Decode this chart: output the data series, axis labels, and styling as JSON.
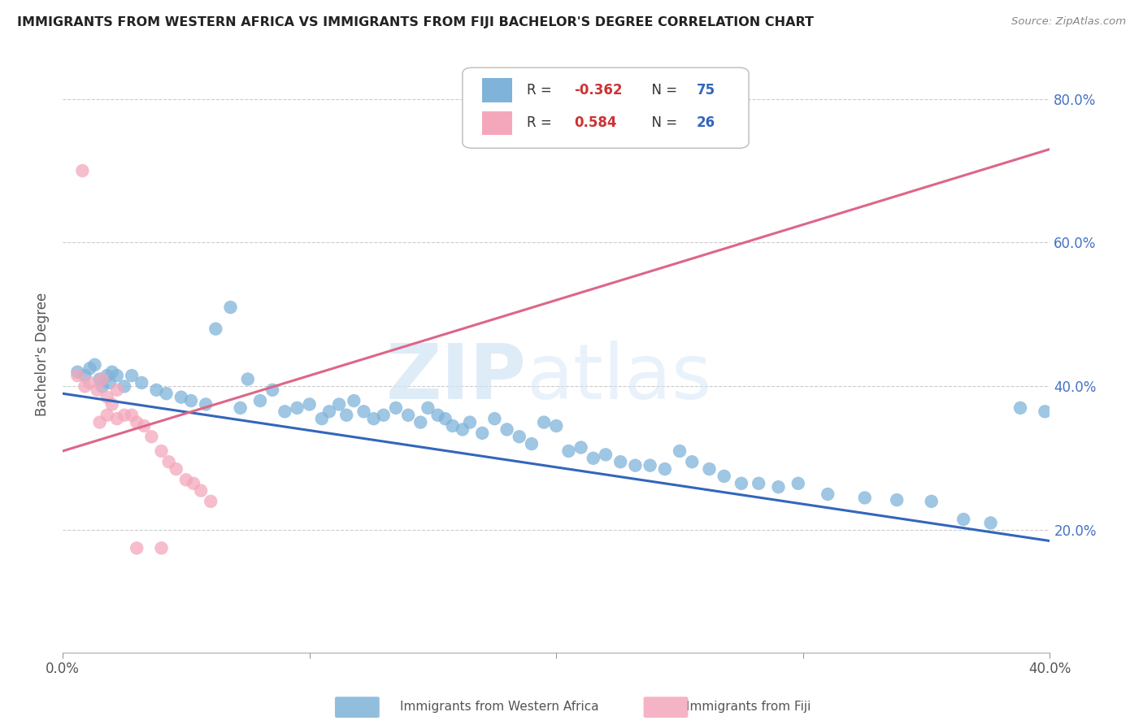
{
  "title": "IMMIGRANTS FROM WESTERN AFRICA VS IMMIGRANTS FROM FIJI BACHELOR'S DEGREE CORRELATION CHART",
  "source": "Source: ZipAtlas.com",
  "ylabel": "Bachelor's Degree",
  "xlim": [
    0.0,
    0.4
  ],
  "ylim": [
    0.03,
    0.86
  ],
  "yticks": [
    0.2,
    0.4,
    0.6,
    0.8
  ],
  "ytick_labels": [
    "20.0%",
    "40.0%",
    "60.0%",
    "80.0%"
  ],
  "xticks": [
    0.0,
    0.1,
    0.2,
    0.3,
    0.4
  ],
  "xtick_labels": [
    "0.0%",
    "",
    "",
    "",
    "40.0%"
  ],
  "blue_R": "-0.362",
  "blue_N": "75",
  "pink_R": "0.584",
  "pink_N": "26",
  "blue_color": "#7fb3d9",
  "pink_color": "#f4a7bb",
  "blue_line_color": "#3366bb",
  "pink_line_color": "#dd6688",
  "watermark_zip": "ZIP",
  "watermark_atlas": "atlas",
  "background_color": "#ffffff",
  "blue_points_x": [
    0.006,
    0.009,
    0.011,
    0.013,
    0.015,
    0.016,
    0.018,
    0.019,
    0.02,
    0.022,
    0.025,
    0.028,
    0.032,
    0.038,
    0.042,
    0.048,
    0.052,
    0.058,
    0.062,
    0.068,
    0.072,
    0.075,
    0.08,
    0.085,
    0.09,
    0.095,
    0.1,
    0.105,
    0.108,
    0.112,
    0.115,
    0.118,
    0.122,
    0.126,
    0.13,
    0.135,
    0.14,
    0.145,
    0.148,
    0.152,
    0.155,
    0.158,
    0.162,
    0.165,
    0.17,
    0.175,
    0.18,
    0.185,
    0.19,
    0.195,
    0.2,
    0.205,
    0.21,
    0.215,
    0.22,
    0.226,
    0.232,
    0.238,
    0.244,
    0.25,
    0.255,
    0.262,
    0.268,
    0.275,
    0.282,
    0.29,
    0.298,
    0.31,
    0.325,
    0.338,
    0.352,
    0.365,
    0.376,
    0.388,
    0.398
  ],
  "blue_points_y": [
    0.42,
    0.415,
    0.425,
    0.43,
    0.41,
    0.4,
    0.415,
    0.405,
    0.42,
    0.415,
    0.4,
    0.415,
    0.405,
    0.395,
    0.39,
    0.385,
    0.38,
    0.375,
    0.48,
    0.51,
    0.37,
    0.41,
    0.38,
    0.395,
    0.365,
    0.37,
    0.375,
    0.355,
    0.365,
    0.375,
    0.36,
    0.38,
    0.365,
    0.355,
    0.36,
    0.37,
    0.36,
    0.35,
    0.37,
    0.36,
    0.355,
    0.345,
    0.34,
    0.35,
    0.335,
    0.355,
    0.34,
    0.33,
    0.32,
    0.35,
    0.345,
    0.31,
    0.315,
    0.3,
    0.305,
    0.295,
    0.29,
    0.29,
    0.285,
    0.31,
    0.295,
    0.285,
    0.275,
    0.265,
    0.265,
    0.26,
    0.265,
    0.25,
    0.245,
    0.242,
    0.24,
    0.215,
    0.21,
    0.37,
    0.365
  ],
  "pink_points_x": [
    0.006,
    0.009,
    0.011,
    0.014,
    0.016,
    0.018,
    0.02,
    0.022,
    0.025,
    0.028,
    0.03,
    0.033,
    0.036,
    0.04,
    0.043,
    0.046,
    0.05,
    0.053,
    0.056,
    0.06,
    0.015,
    0.018,
    0.022,
    0.03,
    0.04,
    0.008
  ],
  "pink_points_y": [
    0.415,
    0.4,
    0.405,
    0.395,
    0.41,
    0.385,
    0.375,
    0.395,
    0.36,
    0.36,
    0.35,
    0.345,
    0.33,
    0.31,
    0.295,
    0.285,
    0.27,
    0.265,
    0.255,
    0.24,
    0.35,
    0.36,
    0.355,
    0.175,
    0.175,
    0.7
  ],
  "blue_trend_x": [
    0.0,
    0.4
  ],
  "blue_trend_y": [
    0.39,
    0.185
  ],
  "pink_trend_x": [
    0.0,
    0.4
  ],
  "pink_trend_y": [
    0.31,
    0.73
  ],
  "legend_blue_label": "R = -0.362   N = 75",
  "legend_pink_label": "R =  0.584   N = 26",
  "bottom_legend_blue": "Immigrants from Western Africa",
  "bottom_legend_pink": "Immigrants from Fiji"
}
